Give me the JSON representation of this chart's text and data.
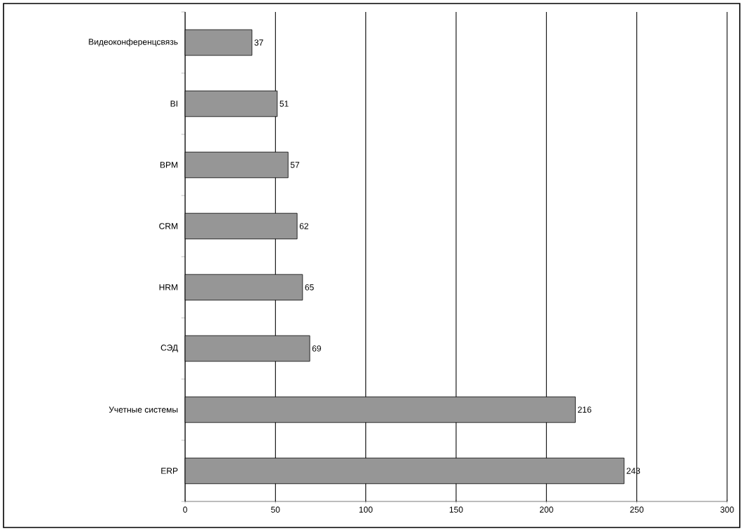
{
  "chart_data": {
    "type": "bar",
    "orientation": "horizontal",
    "categories": [
      "Видеоконференцсвязь",
      "BI",
      "BPM",
      "CRM",
      "HRM",
      "СЭД",
      "Учетные системы",
      "ERP"
    ],
    "values": [
      37,
      51,
      57,
      62,
      65,
      69,
      216,
      243
    ],
    "color": "#969696",
    "xlim": [
      0,
      300
    ],
    "xticks": [
      0,
      50,
      100,
      150,
      200,
      250,
      300
    ],
    "grid": "x",
    "data_labels": true
  }
}
